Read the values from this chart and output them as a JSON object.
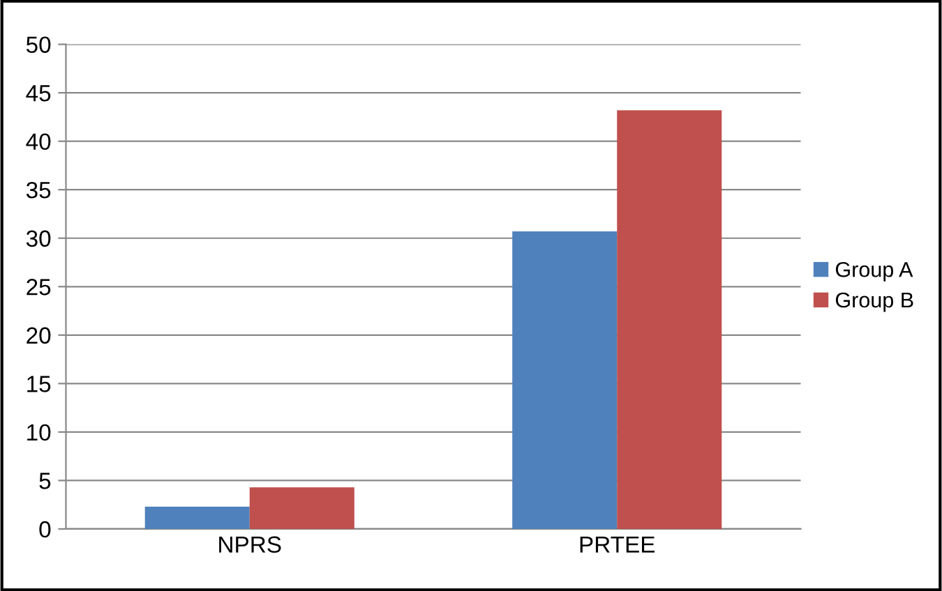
{
  "chart_data": {
    "type": "bar",
    "categories": [
      "NPRS",
      "PRTEE"
    ],
    "series": [
      {
        "name": "Group A",
        "color": "#4f81bd",
        "values": [
          2.3,
          30.7
        ]
      },
      {
        "name": "Group B",
        "color": "#c0504d",
        "values": [
          4.3,
          43.2
        ]
      }
    ],
    "ylim": [
      0,
      50
    ],
    "yticks": [
      0,
      5,
      10,
      15,
      20,
      25,
      30,
      35,
      40,
      45,
      50
    ],
    "grid": "y",
    "legend": "right"
  }
}
